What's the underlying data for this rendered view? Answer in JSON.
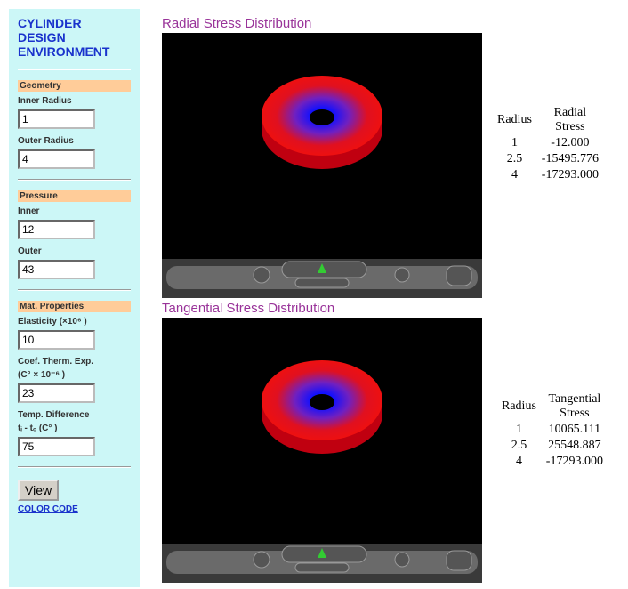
{
  "sidebar": {
    "title": [
      "CYLINDER",
      "DESIGN",
      "ENVIRONMENT"
    ],
    "sections": [
      {
        "header": "Geometry",
        "fields": [
          {
            "label": [
              "Inner Radius"
            ],
            "value": "1"
          },
          {
            "label": [
              "Outer Radius"
            ],
            "value": "4"
          }
        ]
      },
      {
        "header": "Pressure",
        "fields": [
          {
            "label": [
              "Inner"
            ],
            "value": "12"
          },
          {
            "label": [
              "Outer"
            ],
            "value": "43"
          }
        ]
      },
      {
        "header": "Mat. Properties",
        "fields": [
          {
            "label": [
              "Elasticity (×10⁶ )"
            ],
            "value": "10"
          },
          {
            "label": [
              "Coef. Therm. Exp.",
              "(C° × 10⁻⁶ )"
            ],
            "value": "23"
          },
          {
            "label": [
              "Temp. Difference",
              "tᵢ - tₒ (C° )"
            ],
            "value": "75"
          }
        ]
      }
    ],
    "button": "View",
    "link": "COLOR CODE"
  },
  "panels": [
    {
      "title": "Radial Stress Distribution",
      "table": {
        "headers": [
          "Radius",
          "Radial Stress"
        ],
        "rows": [
          [
            "1",
            "-12.000"
          ],
          [
            "2.5",
            "-15495.776"
          ],
          [
            "4",
            "-17293.000"
          ]
        ]
      }
    },
    {
      "title": "Tangential Stress Distribution",
      "table": {
        "headers": [
          "Radius",
          "Tangential Stress"
        ],
        "rows": [
          [
            "1",
            "10065.111"
          ],
          [
            "2.5",
            "25548.887"
          ],
          [
            "4",
            "-17293.000"
          ]
        ]
      }
    }
  ]
}
